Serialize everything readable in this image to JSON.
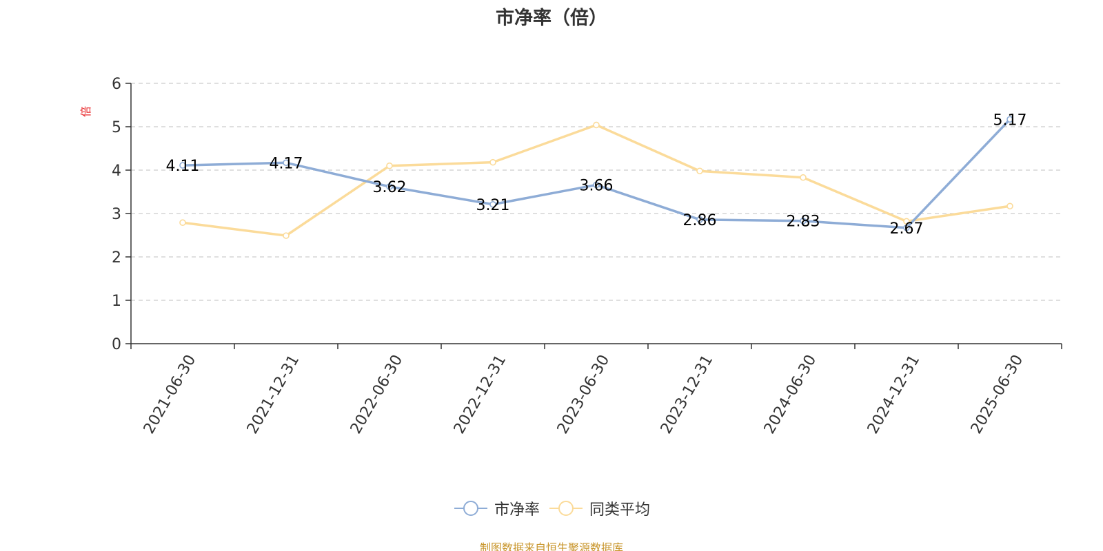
{
  "chart_data": {
    "type": "line",
    "title": "市净率（倍）",
    "ylabel": "倍",
    "xlabel": "",
    "ylim": [
      0,
      6
    ],
    "yticks": [
      0,
      1,
      2,
      3,
      4,
      5,
      6
    ],
    "grid": true,
    "legend_position": "bottom",
    "categories": [
      "2021-06-30",
      "2021-12-31",
      "2022-06-30",
      "2022-12-31",
      "2023-06-30",
      "2023-12-31",
      "2024-06-30",
      "2024-12-31",
      "2025-06-30"
    ],
    "series": [
      {
        "name": "市净率",
        "color": "#8eacd6",
        "values": [
          4.11,
          4.17,
          3.62,
          3.21,
          3.66,
          2.86,
          2.83,
          2.67,
          5.17
        ],
        "show_labels": true
      },
      {
        "name": "同类平均",
        "color": "#fbdb9a",
        "values": [
          2.79,
          2.49,
          4.1,
          4.18,
          5.04,
          3.98,
          3.83,
          2.82,
          3.17
        ],
        "show_labels": false
      }
    ]
  },
  "footer": {
    "source": "制图数据来自恒生聚源数据库"
  }
}
